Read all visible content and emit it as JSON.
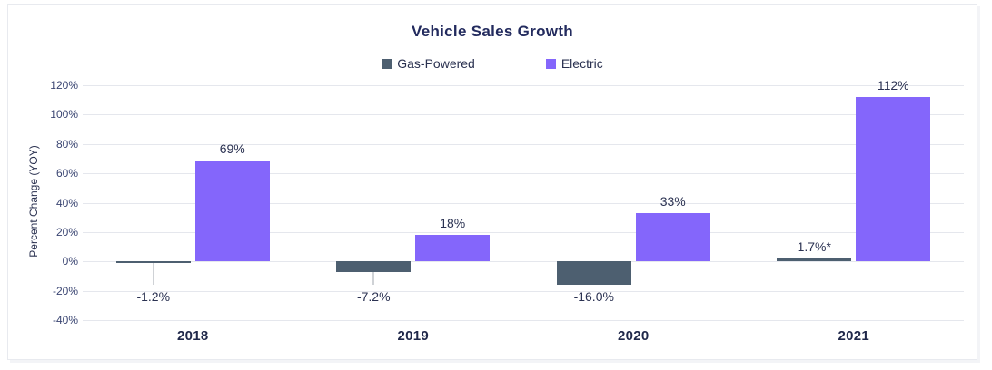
{
  "chart_data": {
    "type": "bar",
    "title": "Vehicle Sales Growth",
    "xlabel": "",
    "ylabel": "Percent Change (YOY)",
    "categories": [
      "2018",
      "2019",
      "2020",
      "2021"
    ],
    "series": [
      {
        "name": "Gas-Powered",
        "color": "#4D5F70",
        "values": [
          -1.2,
          -7.2,
          -16.0,
          1.7
        ],
        "labels": [
          "-1.2%",
          "-7.2%",
          "-16.0%",
          "1.7%*"
        ]
      },
      {
        "name": "Electric",
        "color": "#8466FB",
        "values": [
          69,
          18,
          33,
          112
        ],
        "labels": [
          "69%",
          "18%",
          "33%",
          "112%"
        ]
      }
    ],
    "yticks": [
      120,
      100,
      80,
      60,
      40,
      20,
      0,
      -20,
      -40
    ],
    "ytick_labels": [
      "120%",
      "100%",
      "80%",
      "60%",
      "40%",
      "20%",
      "0%",
      "-20%",
      "-40%"
    ],
    "ylim": [
      -40,
      120
    ],
    "grid": true,
    "legend_position": "top"
  }
}
